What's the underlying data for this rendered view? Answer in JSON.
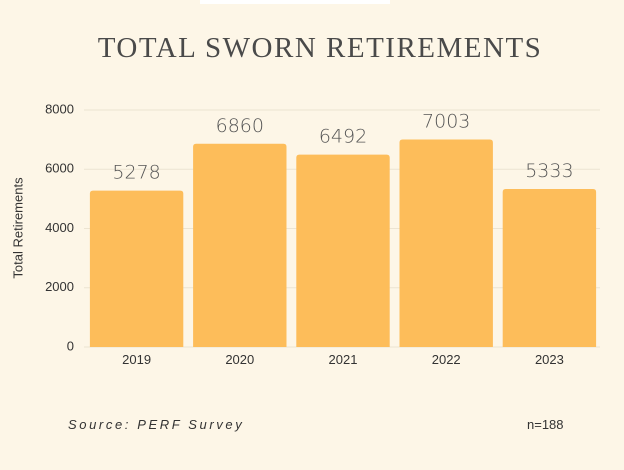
{
  "chart_data": {
    "type": "bar",
    "title": "TOTAL SWORN RETIREMENTS",
    "ylabel": "Total Retirements",
    "xlabel": "",
    "categories": [
      "2019",
      "2020",
      "2021",
      "2022",
      "2023"
    ],
    "values": [
      5278,
      6860,
      6492,
      7003,
      5333
    ],
    "data_labels": [
      "5278",
      "6860",
      "6492",
      "7003",
      "5333"
    ],
    "ylim": [
      0,
      8000
    ],
    "yticks": [
      0,
      2000,
      4000,
      6000,
      8000
    ],
    "ytick_labels": [
      "0",
      "2000",
      "4000",
      "6000",
      "8000"
    ],
    "grid": true,
    "bar_color": "#fdbd5a",
    "background_color": "#fdf6e7"
  },
  "footer": {
    "source": "Source: PERF Survey",
    "n": "n=188"
  }
}
